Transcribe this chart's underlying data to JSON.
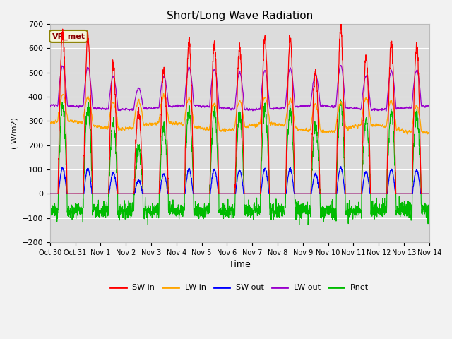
{
  "title": "Short/Long Wave Radiation",
  "ylabel": "( W/m2)",
  "xlabel": "Time",
  "ylim": [
    -200,
    700
  ],
  "yticks": [
    -200,
    -100,
    0,
    100,
    200,
    300,
    400,
    500,
    600,
    700
  ],
  "annotation_text": "VR_met",
  "colors": {
    "SW_in": "#FF0000",
    "LW_in": "#FFA500",
    "SW_out": "#0000FF",
    "LW_out": "#9900CC",
    "Rnet": "#00BB00"
  },
  "tick_labels": [
    "Oct 30",
    "Oct 31",
    "Nov 1",
    "Nov 2",
    "Nov 3",
    "Nov 4",
    "Nov 5",
    "Nov 6",
    "Nov 7",
    "Nov 8",
    "Nov 9",
    "Nov 10",
    "Nov 11",
    "Nov 12",
    "Nov 13",
    "Nov 14"
  ],
  "plot_bg": "#DCDCDC",
  "grid_color": "#FFFFFF",
  "title_fontsize": 11,
  "legend_labels": [
    "SW in",
    "LW in",
    "SW out",
    "LW out",
    "Rnet"
  ]
}
